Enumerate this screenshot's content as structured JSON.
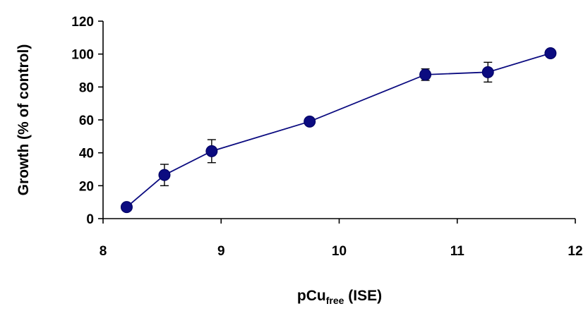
{
  "chart_data": {
    "type": "line",
    "title": "",
    "xlabel": "pCu",
    "xlabel_sub": "free",
    "xlabel_suffix": " (ISE)",
    "ylabel": "Growth (% of control)",
    "xlim": [
      8,
      12
    ],
    "ylim": [
      0,
      120
    ],
    "xticks": [
      "8",
      "9",
      "10",
      "11",
      "12"
    ],
    "yticks": [
      "0",
      "20",
      "40",
      "60",
      "80",
      "100",
      "120"
    ],
    "grid": false,
    "series": [
      {
        "color": "#0b0b80",
        "x": [
          8.2,
          8.52,
          8.92,
          9.75,
          10.73,
          11.26,
          11.79
        ],
        "y": [
          7,
          26.5,
          41,
          59,
          87.5,
          89,
          100.5
        ],
        "err_low": [
          7,
          20,
          34,
          59,
          84,
          83,
          100.5
        ],
        "err_high": [
          7,
          33,
          48,
          59,
          91,
          95,
          100.5
        ]
      }
    ]
  }
}
